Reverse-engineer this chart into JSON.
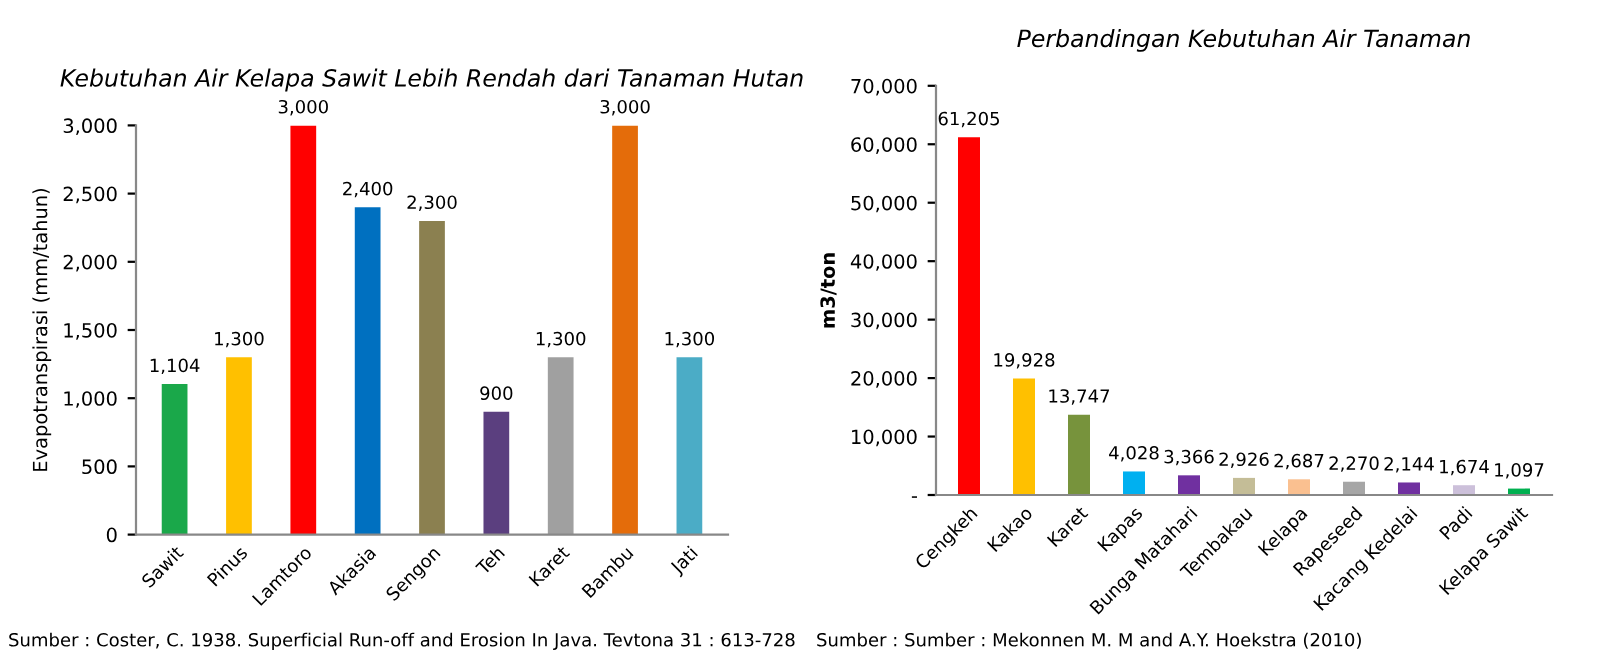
{
  "chart_data": [
    {
      "type": "bar",
      "title": "Kebutuhan Air Kelapa Sawit Lebih Rendah dari Tanaman Hutan",
      "ylabel": "Evapotranspirasi (mm/tahun)",
      "categories": [
        "Sawit",
        "Pinus",
        "Lamtoro",
        "Akasia",
        "Sengon",
        "Teh",
        "Karet",
        "Bambu",
        "Jati"
      ],
      "values": [
        1104,
        1300,
        3000,
        2400,
        2300,
        900,
        1300,
        3000,
        1300
      ],
      "value_labels": [
        "1,104",
        "1,300",
        "3,000",
        "2,400",
        "2,300",
        "900",
        "1,300",
        "3,000",
        "1,300"
      ],
      "colors": [
        "#1aa84a",
        "#ffc000",
        "#ff0000",
        "#0070c0",
        "#8b8050",
        "#5b3f7f",
        "#a0a0a0",
        "#e46c0a",
        "#4bacc6"
      ],
      "ylim": [
        0,
        3000
      ],
      "yticks": [
        0,
        500,
        {
          "value": 1000,
          "label": "1,000"
        },
        {
          "value": 1500,
          "label": "1,500"
        },
        {
          "value": 2000,
          "label": "2,000"
        },
        {
          "value": 2500,
          "label": "2,500"
        },
        {
          "value": 3000,
          "label": "3,000"
        }
      ],
      "annotations": [
        "Sumber : Coster, C. 1938. Superficial Run-off and Erosion In Java. Tevtona 31 : 613-728"
      ]
    },
    {
      "type": "bar",
      "title": "Perbandingan Kebutuhan Air Tanaman",
      "ylabel": "m3/ton",
      "categories": [
        "Cengkeh",
        "Kakao",
        "Karet",
        "Kapas",
        "Bunga Matahari",
        "Tembakau",
        "Kelapa",
        "Rapeseed",
        "Kacang Kedelai",
        "Padi",
        "Kelapa Sawit"
      ],
      "values": [
        61205,
        19928,
        13747,
        4028,
        3366,
        2926,
        2687,
        2270,
        2144,
        1674,
        1097
      ],
      "value_labels": [
        "61,205",
        "19,928",
        "13,747",
        "4,028",
        "3,366",
        "2,926",
        "2,687",
        "2,270",
        "2,144",
        "1,674",
        "1,097"
      ],
      "colors": [
        "#ff0000",
        "#ffc000",
        "#77933c",
        "#00b0f0",
        "#7030a0",
        "#c4bd97",
        "#fac090",
        "#a6a6a6",
        "#7030a0",
        "#ccc0da",
        "#00b050"
      ],
      "ylim": [
        0,
        70000
      ],
      "yticks": [
        {
          "value": 0,
          "label": "-"
        },
        {
          "value": 10000,
          "label": "10,000"
        },
        {
          "value": 20000,
          "label": "20,000"
        },
        {
          "value": 30000,
          "label": "30,000"
        },
        {
          "value": 40000,
          "label": "40,000"
        },
        {
          "value": 50000,
          "label": "50,000"
        },
        {
          "value": 60000,
          "label": "60,000"
        },
        {
          "value": 70000,
          "label": "70,000"
        }
      ],
      "annotations": [
        "Sumber : Sumber : Mekonnen M. M and A.Y. Hoekstra (2010)"
      ]
    }
  ]
}
